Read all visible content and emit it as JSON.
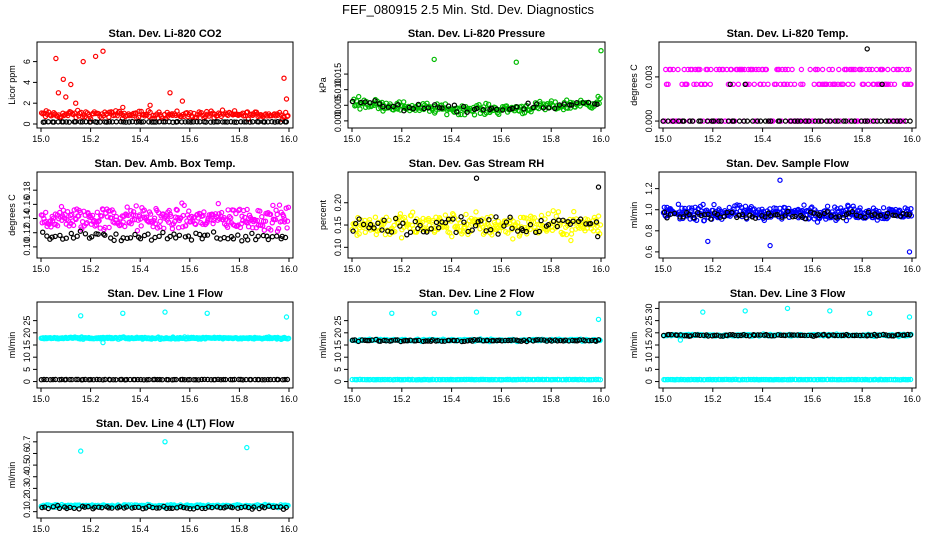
{
  "figure": {
    "title": "FEF_080915  2.5 Min. Std. Dev. Diagnostics"
  },
  "chart_data": [
    {
      "type": "scatter",
      "title": "Stan. Dev. Li-820 CO2",
      "xlabel": "",
      "ylabel": "Licor ppm",
      "xlim": [
        15.0,
        16.0
      ],
      "ylim": [
        0,
        7.5
      ],
      "xticks": [
        "15.0",
        "15.2",
        "15.4",
        "15.6",
        "15.8",
        "16.0"
      ],
      "yticks": [
        {
          "v": 0,
          "label": "0"
        },
        {
          "v": 2,
          "label": "2"
        },
        {
          "v": 4,
          "label": "4"
        },
        {
          "v": 6,
          "label": "6"
        }
      ],
      "series": [
        {
          "color": "#ff0000",
          "base": 0.9,
          "spread": 0.55,
          "n": 200,
          "outliers": [
            [
              15.06,
              6.3
            ],
            [
              15.09,
              4.3
            ],
            [
              15.12,
              3.8
            ],
            [
              15.17,
              6.0
            ],
            [
              15.22,
              6.5
            ],
            [
              15.25,
              7.0
            ],
            [
              15.07,
              3.0
            ],
            [
              15.1,
              2.6
            ],
            [
              15.52,
              3.0
            ],
            [
              15.57,
              2.2
            ],
            [
              15.98,
              4.4
            ],
            [
              15.99,
              2.4
            ],
            [
              15.14,
              2.0
            ],
            [
              15.33,
              1.6
            ],
            [
              15.44,
              1.8
            ]
          ]
        },
        {
          "color": "#000000",
          "base": 0.2,
          "spread": 0.04,
          "n": 80,
          "outliers": []
        }
      ]
    },
    {
      "type": "scatter",
      "title": "Stan. Dev. Li-820 Pressure",
      "xlabel": "",
      "ylabel": "kPa",
      "xlim": [
        15.0,
        16.0
      ],
      "ylim": [
        -0.001,
        0.024
      ],
      "xticks": [
        "15.0",
        "15.2",
        "15.4",
        "15.6",
        "15.8",
        "16.0"
      ],
      "yticks": [
        {
          "v": 0,
          "label": "0.000"
        },
        {
          "v": 0.005,
          "label": "0.005"
        },
        {
          "v": 0.01,
          "label": "0.010"
        },
        {
          "v": 0.015,
          "label": "0.015"
        }
      ],
      "series": [
        {
          "color": "#00bb00",
          "base": 0.0062,
          "spread": 0.0024,
          "curve": -0.0025,
          "n": 230,
          "outliers": [
            [
              15.33,
              0.0197
            ],
            [
              15.66,
              0.0188
            ],
            [
              16.0,
              0.0225
            ]
          ]
        },
        {
          "color": "#000000",
          "base": 0.0062,
          "spread": 0.0018,
          "curve": -0.0025,
          "n": 50,
          "outliers": []
        }
      ]
    },
    {
      "type": "scatter",
      "title": "Stan. Dev. Li-820 Temp.",
      "xlabel": "",
      "ylabel": "degrees C",
      "xlim": [
        15.0,
        16.0
      ],
      "ylim": [
        -0.0002,
        0.0051
      ],
      "xticks": [
        "15.0",
        "15.2",
        "15.4",
        "15.6",
        "15.8",
        "16.0"
      ],
      "yticks": [
        {
          "v": 0,
          "label": "0.000"
        },
        {
          "v": 0.003,
          "label": "0.003"
        }
      ],
      "series": [
        {
          "color": "#ff00ff",
          "levels": [
            0.0,
            0.0025,
            0.0035
          ],
          "n": 220,
          "outliers": []
        },
        {
          "color": "#000000",
          "levels": [
            0.0,
            0.0
          ],
          "n": 60,
          "outliers": [
            [
              15.27,
              0.0025
            ],
            [
              15.33,
              0.0025
            ],
            [
              15.82,
              0.0049
            ],
            [
              15.88,
              0.0025
            ]
          ]
        }
      ]
    },
    {
      "type": "scatter",
      "title": "Stan. Dev. Amb. Box Temp.",
      "xlabel": "",
      "ylabel": "degrees C",
      "xlim": [
        15.0,
        16.0
      ],
      "ylim": [
        0.09,
        0.2
      ],
      "xticks": [
        "15.0",
        "15.2",
        "15.4",
        "15.6",
        "15.8",
        "16.0"
      ],
      "yticks": [
        {
          "v": 0.1,
          "label": "0.10"
        },
        {
          "v": 0.12,
          "label": "0.12"
        },
        {
          "v": 0.14,
          "label": "0.14"
        },
        {
          "v": 0.16,
          "label": "0.16"
        },
        {
          "v": 0.18,
          "label": "0.18"
        }
      ],
      "series": [
        {
          "color": "#ff00ff",
          "base": 0.14,
          "spread": 0.025,
          "n": 300,
          "outliers": []
        },
        {
          "color": "#000000",
          "base": 0.115,
          "spread": 0.01,
          "n": 70,
          "outliers": []
        }
      ]
    },
    {
      "type": "scatter",
      "title": "Stan. Dev. Gas Stream RH",
      "xlabel": "",
      "ylabel": "percent",
      "xlim": [
        15.0,
        16.0
      ],
      "ylim": [
        0.085,
        0.26
      ],
      "xticks": [
        "15.0",
        "15.2",
        "15.4",
        "15.6",
        "15.8",
        "16.0"
      ],
      "yticks": [
        {
          "v": 0.1,
          "label": "0.10"
        },
        {
          "v": 0.15,
          "label": "0.15"
        },
        {
          "v": 0.2,
          "label": "0.20"
        }
      ],
      "series": [
        {
          "color": "#ffff00",
          "base": 0.15,
          "spread": 0.04,
          "n": 300,
          "outliers": []
        },
        {
          "color": "#000000",
          "base": 0.15,
          "spread": 0.035,
          "n": 70,
          "outliers": [
            [
              15.5,
              0.255
            ],
            [
              15.99,
              0.235
            ]
          ]
        }
      ]
    },
    {
      "type": "scatter",
      "title": "Stan. Dev. Sample Flow",
      "xlabel": "",
      "ylabel": "ml/min",
      "xlim": [
        15.0,
        16.0
      ],
      "ylim": [
        0.58,
        1.32
      ],
      "xticks": [
        "15.0",
        "15.2",
        "15.4",
        "15.6",
        "15.8",
        "16.0"
      ],
      "yticks": [
        {
          "v": 0.6,
          "label": "0.6"
        },
        {
          "v": 0.8,
          "label": "0.8"
        },
        {
          "v": 1.0,
          "label": "1.0"
        },
        {
          "v": 1.2,
          "label": "1.2"
        }
      ],
      "series": [
        {
          "color": "#0000ff",
          "base": 0.97,
          "spread": 0.1,
          "n": 320,
          "outliers": [
            [
              15.47,
              1.28
            ],
            [
              15.43,
              0.66
            ],
            [
              15.99,
              0.6
            ],
            [
              15.18,
              0.7
            ]
          ]
        },
        {
          "color": "#000000",
          "base": 0.95,
          "spread": 0.05,
          "n": 70,
          "outliers": []
        }
      ]
    },
    {
      "type": "scatter",
      "title": "Stan. Dev. Line 1 Flow",
      "xlabel": "",
      "ylabel": "ml/min",
      "xlim": [
        15.0,
        16.0
      ],
      "ylim": [
        -1,
        31
      ],
      "xticks": [
        "15.0",
        "15.2",
        "15.4",
        "15.6",
        "15.8",
        "16.0"
      ],
      "yticks": [
        {
          "v": 0,
          "label": "0"
        },
        {
          "v": 5,
          "label": "5"
        },
        {
          "v": 10,
          "label": "10"
        },
        {
          "v": 15,
          "label": "15"
        },
        {
          "v": 20,
          "label": "20"
        },
        {
          "v": 25,
          "label": "25"
        }
      ],
      "series": [
        {
          "color": "#00ffff",
          "base": 17.8,
          "spread": 0.6,
          "n": 250,
          "outliers": [
            [
              15.16,
              27.0
            ],
            [
              15.33,
              28.0
            ],
            [
              15.5,
              28.5
            ],
            [
              15.67,
              28.0
            ],
            [
              15.99,
              26.5
            ],
            [
              15.25,
              16.0
            ]
          ]
        },
        {
          "color": "#000000",
          "base": 0.8,
          "spread": 0.1,
          "n": 90,
          "outliers": []
        }
      ]
    },
    {
      "type": "scatter",
      "title": "Stan. Dev. Line 2 Flow",
      "xlabel": "",
      "ylabel": "ml/min",
      "xlim": [
        15.0,
        16.0
      ],
      "ylim": [
        -1,
        31
      ],
      "xticks": [
        "15.0",
        "15.2",
        "15.4",
        "15.6",
        "15.8",
        "16.0"
      ],
      "yticks": [
        {
          "v": 0,
          "label": "0"
        },
        {
          "v": 5,
          "label": "5"
        },
        {
          "v": 10,
          "label": "10"
        },
        {
          "v": 15,
          "label": "15"
        },
        {
          "v": 20,
          "label": "20"
        },
        {
          "v": 25,
          "label": "25"
        }
      ],
      "series": [
        {
          "color": "#00ffff",
          "base": 17.0,
          "spread": 0.7,
          "n": 200,
          "outliers": [
            [
              15.16,
              28.0
            ],
            [
              15.33,
              28.0
            ],
            [
              15.5,
              28.5
            ],
            [
              15.67,
              28.0
            ],
            [
              15.99,
              25.5
            ]
          ]
        },
        {
          "color": "#000000",
          "base": 16.8,
          "spread": 0.6,
          "n": 90,
          "outliers": []
        },
        {
          "color": "#00ffff",
          "base": 0.8,
          "spread": 0.1,
          "n": 150,
          "outliers": []
        }
      ]
    },
    {
      "type": "scatter",
      "title": "Stan. Dev. Line 3 Flow",
      "xlabel": "",
      "ylabel": "ml/min",
      "xlim": [
        15.0,
        16.0
      ],
      "ylim": [
        -1,
        31
      ],
      "xticks": [
        "15.0",
        "15.2",
        "15.4",
        "15.6",
        "15.8",
        "16.0"
      ],
      "yticks": [
        {
          "v": 0,
          "label": "0"
        },
        {
          "v": 5,
          "label": "5"
        },
        {
          "v": 10,
          "label": "10"
        },
        {
          "v": 15,
          "label": "15"
        },
        {
          "v": 20,
          "label": "20"
        },
        {
          "v": 25,
          "label": "25"
        },
        {
          "v": 30,
          "label": "30"
        }
      ],
      "series": [
        {
          "color": "#00ffff",
          "base": 19.0,
          "spread": 0.6,
          "n": 200,
          "outliers": [
            [
              15.16,
              28.5
            ],
            [
              15.33,
              29.0
            ],
            [
              15.5,
              30.0
            ],
            [
              15.67,
              29.0
            ],
            [
              15.83,
              28.0
            ],
            [
              15.99,
              26.5
            ],
            [
              15.07,
              17.0
            ]
          ]
        },
        {
          "color": "#000000",
          "base": 19.0,
          "spread": 0.5,
          "n": 90,
          "outliers": []
        },
        {
          "color": "#00ffff",
          "base": 0.8,
          "spread": 0.1,
          "n": 150,
          "outliers": []
        }
      ]
    },
    {
      "type": "scatter",
      "title": "Stan. Dev. Line 4 (LT) Flow",
      "xlabel": "",
      "ylabel": "ml/min",
      "xlim": [
        15.0,
        16.0
      ],
      "ylim": [
        0.08,
        0.75
      ],
      "xticks": [
        "15.0",
        "15.2",
        "15.4",
        "15.6",
        "15.8",
        "16.0"
      ],
      "yticks": [
        {
          "v": 0.1,
          "label": "0.1"
        },
        {
          "v": 0.2,
          "label": "0.2"
        },
        {
          "v": 0.3,
          "label": "0.3"
        },
        {
          "v": 0.4,
          "label": "0.4"
        },
        {
          "v": 0.5,
          "label": "0.5"
        },
        {
          "v": 0.6,
          "label": "0.6"
        },
        {
          "v": 0.7,
          "label": "0.7"
        }
      ],
      "series": [
        {
          "color": "#00ffff",
          "base": 0.15,
          "spread": 0.015,
          "n": 220,
          "outliers": [
            [
              15.16,
              0.62
            ],
            [
              15.5,
              0.7
            ],
            [
              15.83,
              0.65
            ]
          ]
        },
        {
          "color": "#000000",
          "base": 0.135,
          "spread": 0.02,
          "n": 70,
          "outliers": []
        }
      ]
    }
  ]
}
